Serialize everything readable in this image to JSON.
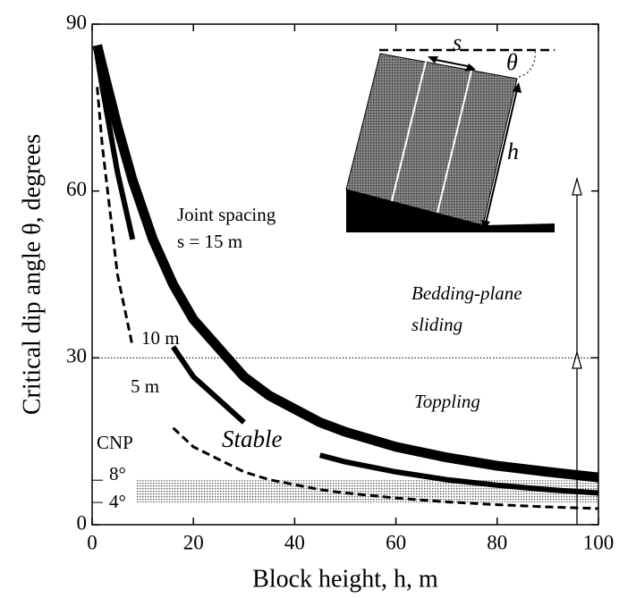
{
  "chart_data": {
    "type": "line",
    "x_label": "Block height, h, m",
    "y_label": "Critical dip angle θ, degrees",
    "x": [
      1,
      2,
      5,
      8,
      12,
      16,
      20,
      30,
      35,
      45,
      50,
      60,
      70,
      80,
      90,
      100
    ],
    "series": [
      {
        "name": "s = 15 m",
        "color": "#000000",
        "line_style": "solid",
        "line_width": 11,
        "values": [
          86.2,
          82.4,
          71.6,
          61.9,
          51.3,
          43.2,
          36.9,
          26.6,
          23.2,
          18.4,
          16.7,
          14.0,
          12.1,
          10.6,
          9.5,
          8.5
        ]
      },
      {
        "name": "10 m",
        "color": "#000000",
        "line_style": "solid",
        "line_width": 6,
        "values": [
          84.3,
          78.7,
          63.4,
          51.3,
          null,
          32.0,
          26.6,
          18.4,
          null,
          12.5,
          11.3,
          9.5,
          8.1,
          7.1,
          6.3,
          5.7
        ]
      },
      {
        "name": "5 m",
        "color": "#000000",
        "line_style": "dashed",
        "line_width": 3,
        "values": [
          78.7,
          68.2,
          45.0,
          32.0,
          null,
          17.4,
          14.0,
          9.5,
          8.1,
          6.3,
          5.7,
          4.8,
          4.1,
          3.6,
          3.2,
          2.9
        ]
      }
    ],
    "xlim": [
      0,
      100
    ],
    "xticks": [
      0,
      20,
      40,
      60,
      80,
      100
    ],
    "ylim": [
      0,
      90
    ],
    "yticks": [
      0,
      30,
      60,
      90
    ],
    "reference_line": 30,
    "cnp_band": {
      "label": "CNP",
      "range": [
        4,
        8
      ],
      "range_labels": [
        "4°",
        "8°"
      ]
    },
    "annotations": [
      "Joint spacing",
      "Stable",
      "Bedding-plane",
      "sliding",
      "Toppling"
    ],
    "inset_labels": [
      "s",
      "θ",
      "h"
    ]
  }
}
